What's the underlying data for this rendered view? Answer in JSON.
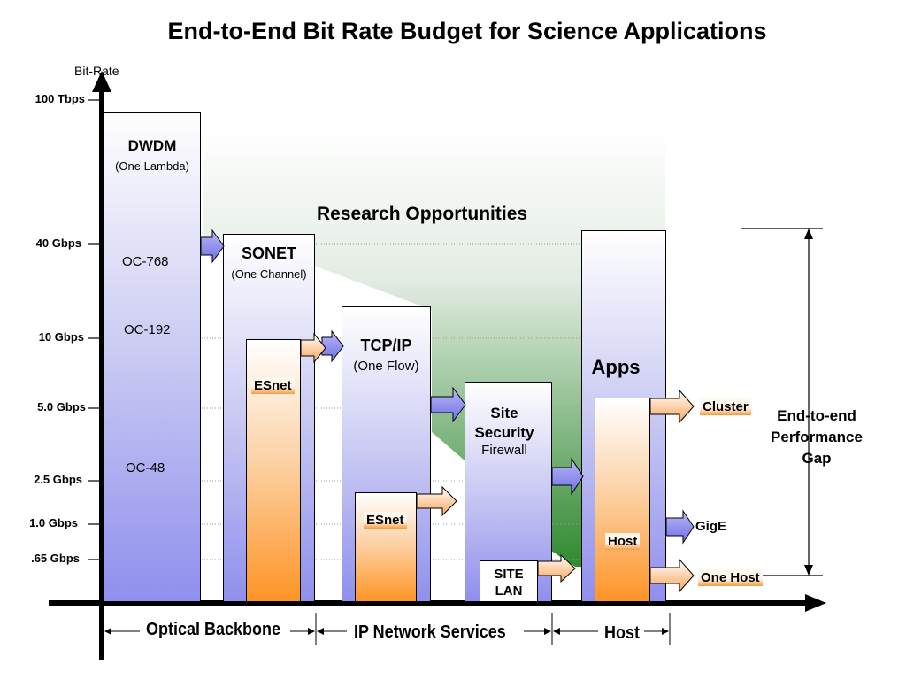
{
  "title": "End-to-End Bit Rate Budget for Science Applications",
  "y_axis_label": "Bit-Rate",
  "rate_ticks": [
    "100 Tbps",
    "40 Gbps",
    "10 Gbps",
    "5.0 Gbps",
    "2.5 Gbps",
    "1.0 Gbps",
    ".65 Gbps"
  ],
  "dwdm": {
    "title": "DWDM",
    "subtitle": "(One Lambda)",
    "oc768": "OC-768",
    "oc192": "OC-192",
    "oc48": "OC-48"
  },
  "sonet": {
    "title": "SONET",
    "subtitle": "(One Channel)",
    "esnet": "ESnet"
  },
  "tcpip": {
    "title": "TCP/IP",
    "subtitle": "(One Flow)",
    "esnet": "ESnet"
  },
  "site": {
    "title_line1": "Site",
    "title_line2": "Security",
    "subtitle": "Firewall",
    "lan_line1": "SITE",
    "lan_line2": "LAN"
  },
  "apps": {
    "title": "Apps",
    "host": "Host"
  },
  "research_label": "Research Opportunities",
  "outputs": {
    "cluster": "Cluster",
    "gige": "GigE",
    "one_host": "One Host"
  },
  "gap": {
    "line1": "End-to-end",
    "line2": "Performance",
    "line3": "Gap"
  },
  "segments": {
    "optical": "Optical Backbone",
    "ip": "IP Network Services",
    "host": "Host"
  },
  "colors": {
    "blue_fill": "#8f8fee",
    "orange_fill": "#ff9426",
    "green_region": "#2f8a2f"
  }
}
